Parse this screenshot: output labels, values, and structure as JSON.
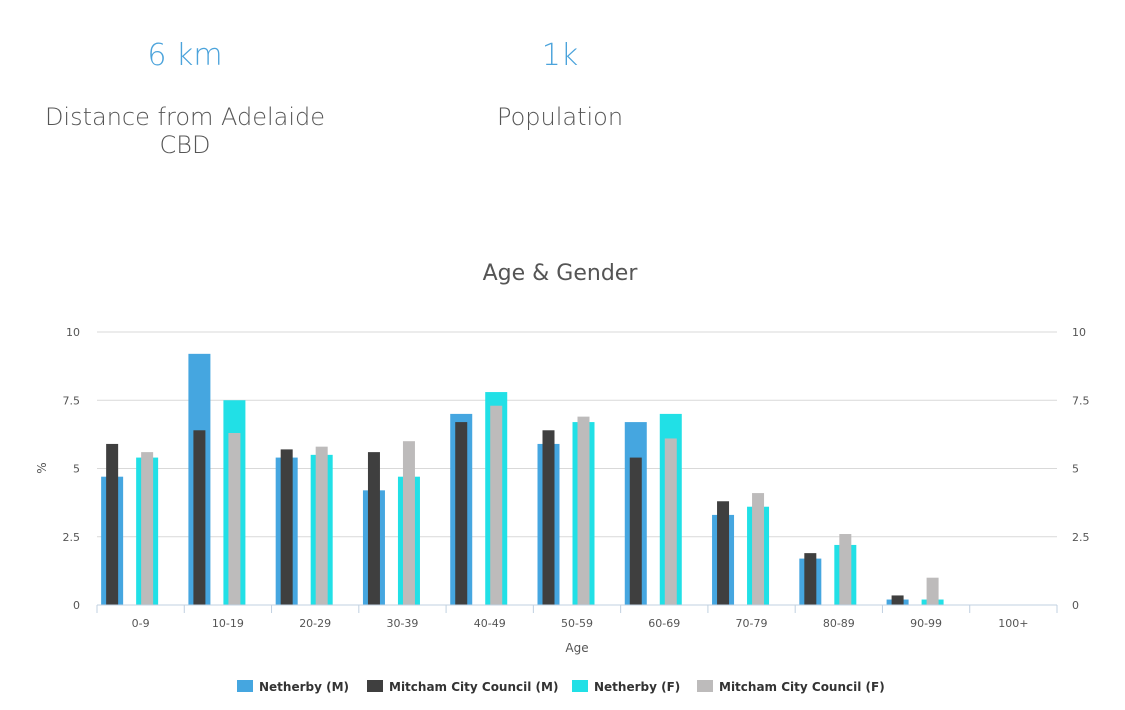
{
  "stats": {
    "distance": {
      "value": "6 km",
      "label_line1": "Distance from Adelaide",
      "label_line2": "CBD"
    },
    "population": {
      "value": "1k",
      "label": "Population"
    }
  },
  "colors": {
    "accent": "#4ba3db",
    "series": [
      "#45a6e0",
      "#3f3f3f",
      "#21e0e6",
      "#bdbbbb"
    ],
    "grid": "#d9d9d9",
    "axis": "#c0d0e0"
  },
  "chart_data": {
    "type": "bar",
    "title": "Age & Gender",
    "xlabel": "Age",
    "ylabel": "%",
    "ylim": [
      0,
      10
    ],
    "yticks": [
      0,
      2.5,
      5,
      7.5,
      10
    ],
    "ytick_labels": [
      "0",
      "2.5",
      "5",
      "7.5",
      "10"
    ],
    "grid": true,
    "legend_position": "bottom-center",
    "categories": [
      "0-9",
      "10-19",
      "20-29",
      "30-39",
      "40-49",
      "50-59",
      "60-69",
      "70-79",
      "80-89",
      "90-99",
      "100+"
    ],
    "series": [
      {
        "name": "Netherby (M)",
        "values": [
          4.7,
          9.2,
          5.4,
          4.2,
          7.0,
          5.9,
          6.7,
          3.3,
          1.7,
          0.2,
          0
        ]
      },
      {
        "name": "Mitcham City Council (M)",
        "values": [
          5.9,
          6.4,
          5.7,
          5.6,
          6.7,
          6.4,
          5.4,
          3.8,
          1.9,
          0.35,
          0
        ]
      },
      {
        "name": "Netherby (F)",
        "values": [
          5.4,
          7.5,
          5.5,
          4.7,
          7.8,
          6.7,
          7.0,
          3.6,
          2.2,
          0.2,
          0
        ]
      },
      {
        "name": "Mitcham City Council (F)",
        "values": [
          5.6,
          6.3,
          5.8,
          6.0,
          7.3,
          6.9,
          6.1,
          4.1,
          2.6,
          1.0,
          0
        ]
      }
    ]
  }
}
